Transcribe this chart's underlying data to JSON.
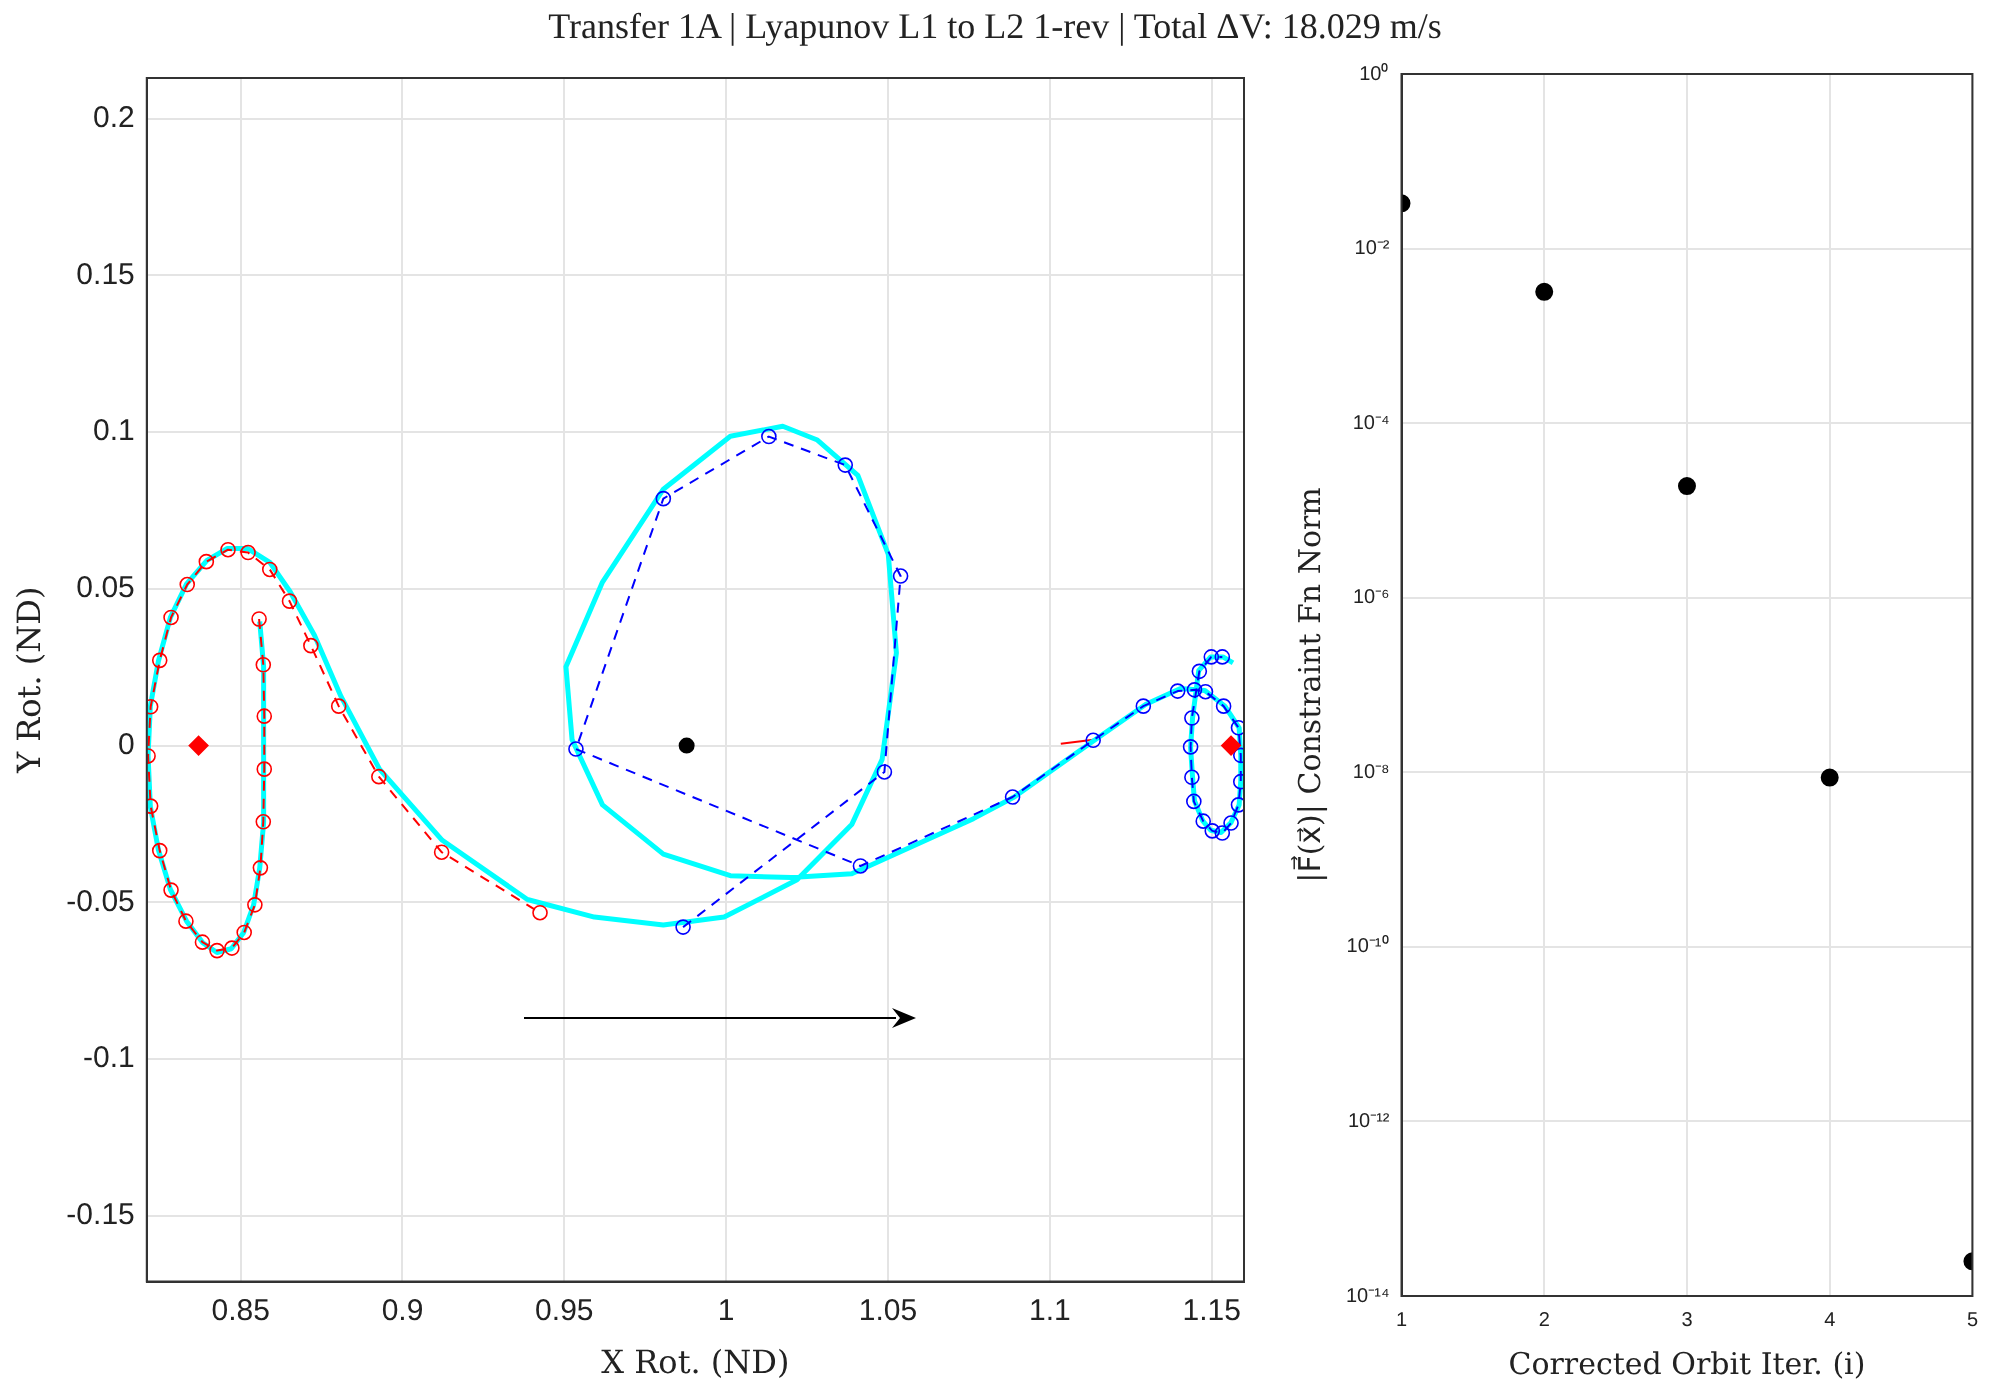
{
  "chart_data": [
    {
      "type": "line",
      "title": "Transfer 1A | Lyapunov L1 to L2 1-rev | Total ΔV: 18.029 m/s",
      "xlabel": "X Rot. (ND)",
      "ylabel": "Y Rot. (ND)",
      "xlim": [
        0.821,
        1.16
      ],
      "ylim": [
        -0.171,
        0.213
      ],
      "xticks": [
        0.85,
        0.9,
        0.95,
        1,
        1.05,
        1.1,
        1.15
      ],
      "yticks": [
        -0.15,
        -0.1,
        -0.05,
        0,
        0.05,
        0.1,
        0.15,
        0.2
      ],
      "grid": true,
      "series": [
        {
          "type": "line",
          "color": "#ff0000",
          "marker": "circle",
          "line_style": "dashed",
          "x": [
            0.8557,
            0.857,
            0.8573,
            0.8573,
            0.857,
            0.8561,
            0.8544,
            0.8511,
            0.8473,
            0.8427,
            0.8382,
            0.8331,
            0.8285,
            0.825,
            0.8222,
            0.8214,
            0.8222,
            0.825,
            0.8285,
            0.8335,
            0.8394,
            0.8461,
            0.8523,
            0.859,
            0.8651,
            0.8717,
            0.8803,
            0.8927,
            0.9121,
            0.9425
          ],
          "values": [
            0.0404,
            0.0258,
            0.0094,
            -0.0075,
            -0.0243,
            -0.039,
            -0.0508,
            -0.0596,
            -0.0646,
            -0.0654,
            -0.0627,
            -0.056,
            -0.0461,
            -0.0335,
            -0.0193,
            -0.0033,
            0.0124,
            0.0272,
            0.0409,
            0.0514,
            0.0587,
            0.0625,
            0.0616,
            0.0562,
            0.0461,
            0.0319,
            0.0126,
            -0.0099,
            -0.034,
            -0.0533
          ]
        },
        {
          "type": "line",
          "color": "#0000ff",
          "marker": "circle",
          "line_style": "dashed",
          "x": [
            0.9867,
            1.0489,
            1.0539,
            1.0368,
            1.0132,
            0.9806,
            0.9536,
            1.0415,
            1.0885,
            1.1134,
            1.1289,
            1.1395,
            1.1447,
            1.1481,
            1.1537,
            1.1583,
            1.159,
            1.159,
            1.1583,
            1.156,
            1.1533,
            1.1502,
            1.1474,
            1.1445,
            1.1439,
            1.1435,
            1.1439,
            1.1462,
            1.1499,
            1.1533
          ],
          "values": [
            -0.0579,
            -0.0084,
            0.0541,
            0.0895,
            0.0986,
            0.0788,
            -0.0011,
            -0.0384,
            -0.0164,
            0.0017,
            0.0126,
            0.0174,
            0.0178,
            0.0172,
            0.0126,
            0.0057,
            -0.0031,
            -0.0115,
            -0.0189,
            -0.0247,
            -0.0279,
            -0.0272,
            -0.0241,
            -0.0178,
            -0.0101,
            -0.0004,
            0.0088,
            0.0237,
            0.0283,
            0.0283
          ]
        },
        {
          "type": "line",
          "color": "#00ffff",
          "marker": "none",
          "line_style": "solid",
          "x": [
            0.8559,
            0.8571,
            0.8571,
            0.8559,
            0.854,
            0.8509,
            0.8471,
            0.8427,
            0.8383,
            0.8333,
            0.8283,
            0.8246,
            0.8221,
            0.8214,
            0.8221,
            0.8246,
            0.8283,
            0.8333,
            0.8396,
            0.8459,
            0.8521,
            0.859,
            0.8653,
            0.8728,
            0.881,
            0.8929,
            0.9123,
            0.9386,
            0.9593,
            0.9806,
            0.9994,
            1.0219,
            1.0388,
            1.0482,
            1.0526,
            1.0501,
            1.0407,
            1.0282,
            1.0175,
            1.0013,
            0.9806,
            0.9618,
            0.9505,
            0.9524,
            0.9618,
            0.9806,
            1.0013,
            1.0201,
            1.0388,
            1.0764,
            1.089,
            1.114,
            1.1297,
            1.1404,
            1.1479,
            1.1541,
            1.1585,
            1.159,
            1.159,
            1.1585,
            1.156,
            1.1529,
            1.1497,
            1.1472,
            1.1447,
            1.1441,
            1.1435,
            1.1441,
            1.146,
            1.1497,
            1.1535,
            1.1566
          ],
          "values": [
            0.0396,
            0.0252,
            -0.0245,
            -0.039,
            -0.0509,
            -0.0597,
            -0.0648,
            -0.066,
            -0.0629,
            -0.056,
            -0.0459,
            -0.0333,
            -0.0195,
            -0.0031,
            0.0126,
            0.027,
            0.0409,
            0.0516,
            0.0591,
            0.0629,
            0.0629,
            0.0585,
            0.0491,
            0.0352,
            0.0157,
            -0.0075,
            -0.0302,
            -0.0491,
            -0.0547,
            -0.0572,
            -0.0547,
            -0.0428,
            -0.0252,
            -0.0044,
            0.0296,
            0.061,
            0.0862,
            0.0975,
            0.1019,
            0.0987,
            0.0818,
            0.0522,
            0.0252,
            0.0019,
            -0.0189,
            -0.0346,
            -0.0415,
            -0.0421,
            -0.0409,
            -0.0233,
            -0.0164,
            0.0019,
            0.0132,
            0.0182,
            0.0176,
            0.0126,
            0.0057,
            -0.0031,
            -0.0113,
            -0.0189,
            -0.0245,
            -0.0277,
            -0.027,
            -0.0239,
            -0.0176,
            -0.0101,
            -0.0006,
            0.0088,
            0.0239,
            0.0283,
            0.0283,
            0.0264
          ]
        },
        {
          "type": "line",
          "color": "#ff0000",
          "marker": "none",
          "line_style": "solid",
          "x": [
            1.1034,
            1.1134
          ],
          "values": [
            0.0006,
            0.0019
          ]
        },
        {
          "type": "scatter",
          "color": "#ff0000",
          "marker": "diamond",
          "x": [
            0.837,
            1.156
          ],
          "values": [
            0,
            0
          ]
        },
        {
          "type": "scatter",
          "color": "#000000",
          "marker": "circle",
          "x": [
            0.9878
          ],
          "values": [
            0
          ]
        }
      ]
    },
    {
      "type": "scatter",
      "xlabel": "Corrected Orbit Iter. (i)",
      "ylabel": "|F⃗(x⃗)| Constraint Fn Norm",
      "log": "y",
      "grid": true,
      "marker": "circle",
      "color": "#000000",
      "x": [
        1,
        2,
        3,
        4,
        5
      ],
      "values": [
        0.033,
        0.0032,
        1.9e-05,
        8.7e-09,
        2.5e-14
      ],
      "xlim": [
        1,
        5
      ],
      "xticks": [
        1,
        2,
        3,
        4,
        5
      ],
      "ylim": [
        1e-14,
        1
      ],
      "yticks": [
        {
          "value": 1e-14,
          "label": "10⁻¹⁴"
        },
        {
          "value": 1e-12,
          "label": "10⁻¹²"
        },
        {
          "value": 1e-10,
          "label": "10⁻¹⁰"
        },
        {
          "value": 1e-08,
          "label": "10⁻⁸"
        },
        {
          "value": 1e-06,
          "label": "10⁻⁶"
        },
        {
          "value": 0.0001,
          "label": "10⁻⁴"
        },
        {
          "value": 0.01,
          "label": "10⁻²"
        },
        {
          "value": 1,
          "label": "10⁰"
        }
      ]
    }
  ]
}
